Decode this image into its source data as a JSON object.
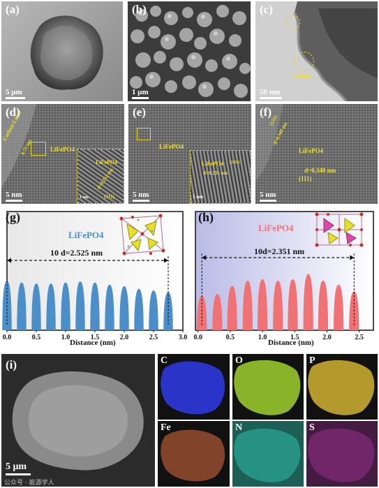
{
  "panels": {
    "a": {
      "label": "(a)",
      "scale": "5 μm"
    },
    "b": {
      "label": "(b)",
      "scale": "1 μm"
    },
    "c": {
      "label": "(c)",
      "scale": "50 nm",
      "annotation": "Carbon"
    },
    "d": {
      "label": "(d)",
      "scale": "5 nm",
      "carbon_layer": "Carbon Layer",
      "material": "LiFePO4",
      "inset_material": "LiFePO4",
      "inset_d": "d=0.252 nm",
      "inset_plane": "(311)",
      "inset_scale": "1 nm",
      "edge_label": "0.73 nm"
    },
    "e": {
      "label": "(e)",
      "scale": "5 nm",
      "material": "LiFePO4",
      "inset_material": "LiFePO4",
      "inset_d": "d=0.235 nm",
      "inset_plane": "(2/41)",
      "inset_scale": "1 nm"
    },
    "f": {
      "label": "(f)",
      "scale": "5 nm",
      "material": "LiFePO4",
      "d_main": "d=0.348 nm",
      "plane_main": "(111)",
      "d_side": "d=0.348 nm",
      "plane_side": "(121)"
    }
  },
  "chart_data": [
    {
      "panel_label": "(g)",
      "type": "area",
      "series_label": "LiFePO4",
      "annotation": "10 d=2.525 nm",
      "xlabel": "Distance (nm)",
      "x_ticks": [
        "0.0",
        "0.5",
        "1.0",
        "1.5",
        "2.0",
        "2.5",
        "3.0"
      ],
      "xlim": [
        0,
        3.0
      ],
      "peaks_x": [
        0.0,
        0.25,
        0.5,
        0.75,
        1.0,
        1.25,
        1.5,
        1.75,
        2.0,
        2.25,
        2.5,
        2.75
      ],
      "peaks_h": [
        0.93,
        0.9,
        0.88,
        0.88,
        0.9,
        0.92,
        0.9,
        0.86,
        0.83,
        0.78,
        0.75,
        0.72
      ],
      "color": "#4b8ec8"
    },
    {
      "panel_label": "(h)",
      "type": "area",
      "series_label": "LiFePO4",
      "annotation": "10d=2.351 nm",
      "xlabel": "Distance (nm)",
      "x_ticks": [
        "0.0",
        "0.5",
        "1.0",
        "1.5",
        "2.0",
        "2.5"
      ],
      "xlim": [
        -0.04,
        2.72
      ],
      "peaks_x": [
        0.06,
        0.3,
        0.53,
        0.77,
        1.0,
        1.24,
        1.47,
        1.71,
        1.94,
        2.18,
        2.42
      ],
      "peaks_h": [
        0.52,
        0.54,
        0.66,
        0.74,
        0.76,
        0.74,
        0.76,
        0.84,
        0.74,
        0.68,
        0.58
      ],
      "color": "#f07275"
    }
  ],
  "eds": {
    "label": "(i)",
    "scale": "5 μm",
    "maps": [
      {
        "element": "C",
        "color": "#2b34c9"
      },
      {
        "element": "O",
        "color": "#9fd12f"
      },
      {
        "element": "P",
        "color": "#d1b232"
      },
      {
        "element": "Fe",
        "color": "#b05a34"
      },
      {
        "element": "N",
        "color": "#2dbda9"
      },
      {
        "element": "S",
        "color": "#a5329c"
      }
    ]
  },
  "watermark": "公众号 · 能源学人"
}
